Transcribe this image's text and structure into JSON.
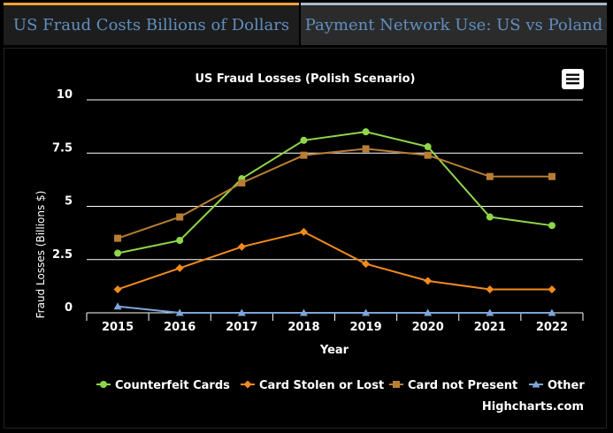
{
  "tabs": [
    {
      "label": "US Fraud Costs Billions of Dollars",
      "active": true
    },
    {
      "label": "Payment Network Use: US vs Poland",
      "active": false
    }
  ],
  "colors": {
    "tab_active_accent": "#f2a13b",
    "tab_inactive_accent": "#a8b9cc",
    "tab_text": "#5f8fc1",
    "background": "#000000",
    "text": "#ffffff",
    "grid": "#ffffff"
  },
  "menu_icon": "hamburger-menu-icon",
  "credits": "Highcharts.com",
  "chart_data": {
    "type": "line",
    "title": "US Fraud Losses (Polish Scenario)",
    "xlabel": "Year",
    "ylabel": "Fraud Losses (Billions $)",
    "categories": [
      "2015",
      "2016",
      "2017",
      "2018",
      "2019",
      "2020",
      "2021",
      "2022"
    ],
    "ylim": [
      0,
      10
    ],
    "yticks": [
      {
        "value": 0,
        "label": "0"
      },
      {
        "value": 2.5,
        "label": "2.5"
      },
      {
        "value": 5,
        "label": "5"
      },
      {
        "value": 7.5,
        "label": "7.5"
      },
      {
        "value": 10,
        "label": "10"
      }
    ],
    "grid": true,
    "legend_position": "bottom",
    "series": [
      {
        "name": "Counterfeit Cards",
        "color": "#8fd64a",
        "marker": "circle",
        "values": [
          2.8,
          3.4,
          6.3,
          8.1,
          8.5,
          7.8,
          4.5,
          4.1
        ]
      },
      {
        "name": "Card Stolen or Lost",
        "color": "#f28a1e",
        "marker": "diamond",
        "values": [
          1.1,
          2.1,
          3.1,
          3.8,
          2.3,
          1.5,
          1.1,
          1.1
        ]
      },
      {
        "name": "Card not Present",
        "color": "#b87d34",
        "marker": "square",
        "values": [
          3.5,
          4.5,
          6.1,
          7.4,
          7.7,
          7.4,
          6.4,
          6.4
        ]
      },
      {
        "name": "Other",
        "color": "#7ea6d8",
        "marker": "triangle",
        "values": [
          0.3,
          0.0,
          0.0,
          0.0,
          0.0,
          0.0,
          0.0,
          0.0
        ]
      }
    ]
  }
}
